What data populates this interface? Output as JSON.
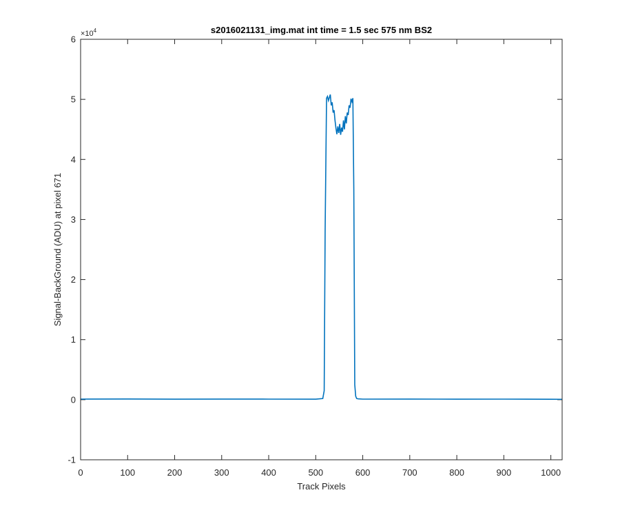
{
  "chart_data": {
    "type": "line",
    "title": "s2016021131_img.mat int time = 1.5 sec  575 nm BS2",
    "xlabel": "Track Pixels",
    "ylabel": "Signal-BackGround (ADU) at pixel 671",
    "y_exponent_label": "×10",
    "y_exponent_power": "4",
    "xlim": [
      0,
      1024
    ],
    "ylim": [
      -10000,
      60000
    ],
    "x_ticks": [
      0,
      100,
      200,
      300,
      400,
      500,
      600,
      700,
      800,
      900,
      1000
    ],
    "x_tick_labels": [
      "0",
      "100",
      "200",
      "300",
      "400",
      "500",
      "600",
      "700",
      "800",
      "900",
      "1000"
    ],
    "y_ticks": [
      -10000,
      0,
      10000,
      20000,
      30000,
      40000,
      50000,
      60000
    ],
    "y_tick_labels": [
      "-1",
      "0",
      "1",
      "2",
      "3",
      "4",
      "5",
      "6"
    ],
    "grid": false,
    "box": true,
    "series": [
      {
        "color": "#0072BD",
        "x": [
          0,
          100,
          200,
          300,
          400,
          500,
          515,
          518,
          520,
          523,
          525,
          527,
          529,
          531,
          533,
          535,
          537,
          539,
          541,
          543,
          545,
          547,
          549,
          551,
          553,
          555,
          557,
          559,
          561,
          563,
          565,
          567,
          569,
          571,
          573,
          575,
          577,
          579,
          581,
          583,
          585,
          587,
          590,
          600,
          700,
          800,
          900,
          1000,
          1024
        ],
        "y": [
          100,
          120,
          90,
          110,
          100,
          90,
          200,
          1500,
          28000,
          50200,
          50500,
          49800,
          50300,
          50800,
          49000,
          49500,
          47800,
          48200,
          46500,
          45200,
          44200,
          45500,
          44400,
          45900,
          44100,
          45300,
          44600,
          46500,
          45000,
          47200,
          46000,
          47800,
          47400,
          49000,
          48600,
          50100,
          49600,
          50200,
          35000,
          2500,
          600,
          200,
          150,
          100,
          110,
          90,
          100,
          80,
          70
        ]
      }
    ]
  }
}
